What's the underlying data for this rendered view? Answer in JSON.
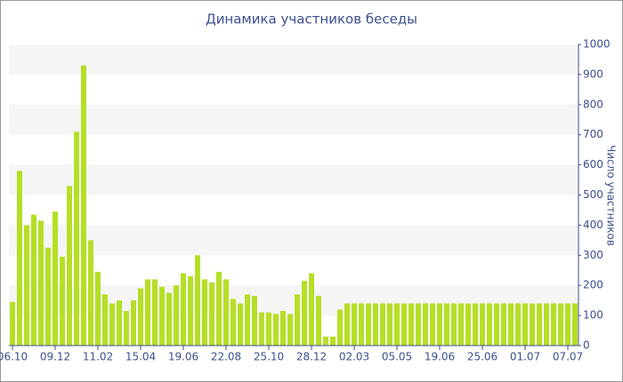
{
  "chart_data": {
    "type": "bar",
    "title": "Динамика участников беседы",
    "y_label": "Число участников",
    "categories": [
      "06.10",
      null,
      null,
      null,
      null,
      null,
      "09.12",
      null,
      null,
      null,
      null,
      null,
      "11.02",
      null,
      null,
      null,
      null,
      null,
      "15.04",
      null,
      null,
      null,
      null,
      null,
      "19.06",
      null,
      null,
      null,
      null,
      null,
      "22.08",
      null,
      null,
      null,
      null,
      null,
      "25.10",
      null,
      null,
      null,
      null,
      null,
      "28.12",
      null,
      null,
      null,
      null,
      null,
      "02.03",
      null,
      null,
      null,
      null,
      null,
      "05.05",
      null,
      null,
      null,
      null,
      null,
      "19.06",
      null,
      null,
      null,
      null,
      null,
      "25.06",
      null,
      null,
      null,
      null,
      null,
      "01.07",
      null,
      null,
      null,
      null,
      null,
      "07.07",
      null
    ],
    "values": [
      145,
      580,
      400,
      435,
      415,
      325,
      445,
      295,
      530,
      710,
      930,
      350,
      245,
      170,
      140,
      150,
      115,
      150,
      190,
      220,
      220,
      195,
      175,
      200,
      240,
      230,
      300,
      220,
      210,
      245,
      220,
      155,
      140,
      170,
      165,
      110,
      110,
      105,
      115,
      105,
      170,
      215,
      240,
      165,
      30,
      30,
      120,
      140,
      140,
      140,
      140,
      140,
      140,
      140,
      140,
      140,
      140,
      140,
      140,
      140,
      140,
      140,
      140,
      140,
      140,
      140,
      140,
      140,
      140,
      140,
      140,
      140,
      140,
      140,
      140,
      140,
      140,
      140,
      140,
      140
    ],
    "color": "#b5df26",
    "ylim": [
      0,
      1000
    ],
    "yticks": [
      0,
      100,
      200,
      300,
      400,
      500,
      600,
      700,
      800,
      900,
      1000
    ],
    "grid": true
  }
}
